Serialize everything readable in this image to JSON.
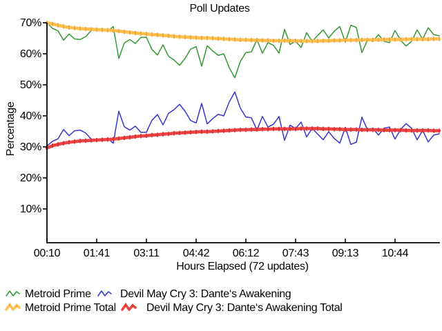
{
  "chart_data": {
    "type": "line",
    "title": "Poll Updates",
    "xlabel": "Hours Elapsed (72 updates)",
    "ylabel": "Percentage",
    "grid": false,
    "legend_position": "bottom-left",
    "x_count": 72,
    "ylim": [
      0,
      70
    ],
    "y_tick_values": [
      70,
      60,
      50,
      40,
      30,
      20,
      10
    ],
    "y_tick_labels": [
      "70%",
      "60%",
      "50%",
      "40%",
      "30%",
      "20%",
      "10%"
    ],
    "x_tick_indices": [
      0,
      9,
      18,
      27,
      36,
      45,
      54,
      63
    ],
    "x_tick_labels": [
      "00:10",
      "01:41",
      "03:11",
      "04:42",
      "06:12",
      "07:43",
      "09:13",
      "10:44"
    ],
    "series": [
      {
        "name": "Metroid Prime",
        "style": "thin",
        "color": "#339933",
        "values": [
          70,
          68.2,
          67.4,
          64.4,
          66.4,
          64.8,
          64.6,
          65.5,
          67.5,
          68.1,
          67.9,
          67.3,
          68.8,
          58.5,
          63.5,
          64.6,
          63.3,
          65.3,
          65.3,
          61.4,
          59.6,
          62.9,
          59.2,
          58,
          56.3,
          58.5,
          61.5,
          62.3,
          56,
          62.6,
          60.9,
          59.5,
          60,
          55.5,
          52.3,
          57.5,
          60.4,
          60.6,
          64.6,
          60.2,
          63.6,
          62.7,
          60.2,
          67.9,
          63,
          64.1,
          62,
          66.8,
          64,
          65.9,
          67.7,
          65.1,
          67.3,
          68.8,
          63.7,
          69.2,
          68.5,
          60.4,
          64.4,
          64,
          66.2,
          64,
          63.6,
          67.5,
          64.4,
          62.5,
          64,
          67.7,
          64.7,
          68.4,
          66.2,
          65.8
        ]
      },
      {
        "name": "Devil May Cry 3: Dante‘s Awakening",
        "style": "thin",
        "color": "#3535cf",
        "values": [
          30.3,
          31.8,
          32.6,
          35.6,
          33.6,
          35.2,
          35.4,
          34.5,
          32.5,
          31.9,
          32.1,
          32.7,
          31.2,
          41.5,
          36.5,
          35.4,
          36.7,
          34.7,
          34.7,
          38.6,
          40.4,
          37.1,
          40.8,
          42,
          43.7,
          41.5,
          38.5,
          37.7,
          44,
          37.4,
          39.1,
          40.5,
          40,
          44.5,
          47.7,
          42.5,
          39.6,
          39.4,
          35.4,
          39.8,
          36.4,
          37.3,
          39.8,
          32.1,
          37,
          35.9,
          38,
          33.2,
          36,
          34.1,
          32.3,
          34.9,
          32.7,
          31.2,
          36.3,
          30.8,
          31.5,
          39.6,
          35.6,
          36,
          33.8,
          36,
          36.4,
          32.5,
          35.6,
          37.5,
          36,
          32.3,
          35.3,
          31.6,
          33.8,
          34.2
        ]
      },
      {
        "name": "Metroid Prime Total",
        "style": "thick",
        "color": "#ffc04f",
        "tick_color": "#f0a236",
        "values": [
          70,
          69.6,
          69.2,
          68.8,
          68.5,
          68.3,
          68.1,
          68,
          67.9,
          67.8,
          67.7,
          67.6,
          67.5,
          67.3,
          67.1,
          66.9,
          66.7,
          66.5,
          66.4,
          66.2,
          66.1,
          65.9,
          65.8,
          65.6,
          65.5,
          65.4,
          65.3,
          65.2,
          65.1,
          65.1,
          65,
          64.9,
          64.8,
          64.7,
          64.6,
          64.5,
          64.5,
          64.4,
          64.4,
          64.3,
          64.3,
          64.2,
          64.2,
          64.2,
          64.2,
          64.2,
          64.1,
          64.1,
          64.1,
          64.1,
          64.2,
          64.2,
          64.3,
          64.3,
          64.4,
          64.4,
          64.4,
          64.5,
          64.5,
          64.5,
          64.5,
          64.6,
          64.6,
          64.6,
          64.6,
          64.7,
          64.7,
          64.7,
          64.7,
          64.7,
          64.8,
          64.8
        ]
      },
      {
        "name": "Devil May Cry 3: Dante‘s Awakening Total",
        "style": "thick",
        "color": "#ee4343",
        "tick_color": "#d22f2f",
        "values": [
          29.6,
          30.4,
          30.8,
          31.2,
          31.5,
          31.7,
          31.9,
          32,
          32.1,
          32.2,
          32.3,
          32.4,
          32.5,
          32.7,
          32.9,
          33.1,
          33.3,
          33.5,
          33.6,
          33.8,
          33.9,
          34.1,
          34.2,
          34.4,
          34.5,
          34.6,
          34.7,
          34.8,
          34.9,
          34.9,
          35,
          35.1,
          35.2,
          35.3,
          35.4,
          35.5,
          35.5,
          35.6,
          35.6,
          35.7,
          35.7,
          35.8,
          35.8,
          35.8,
          35.8,
          35.8,
          35.9,
          35.9,
          35.9,
          35.9,
          35.8,
          35.8,
          35.7,
          35.7,
          35.6,
          35.6,
          35.6,
          35.5,
          35.5,
          35.5,
          35.5,
          35.4,
          35.4,
          35.4,
          35.4,
          35.3,
          35.3,
          35.3,
          35.3,
          35.3,
          35.2,
          35.2
        ]
      }
    ],
    "axis_color": "#000000",
    "background_color": "#ffffff"
  }
}
